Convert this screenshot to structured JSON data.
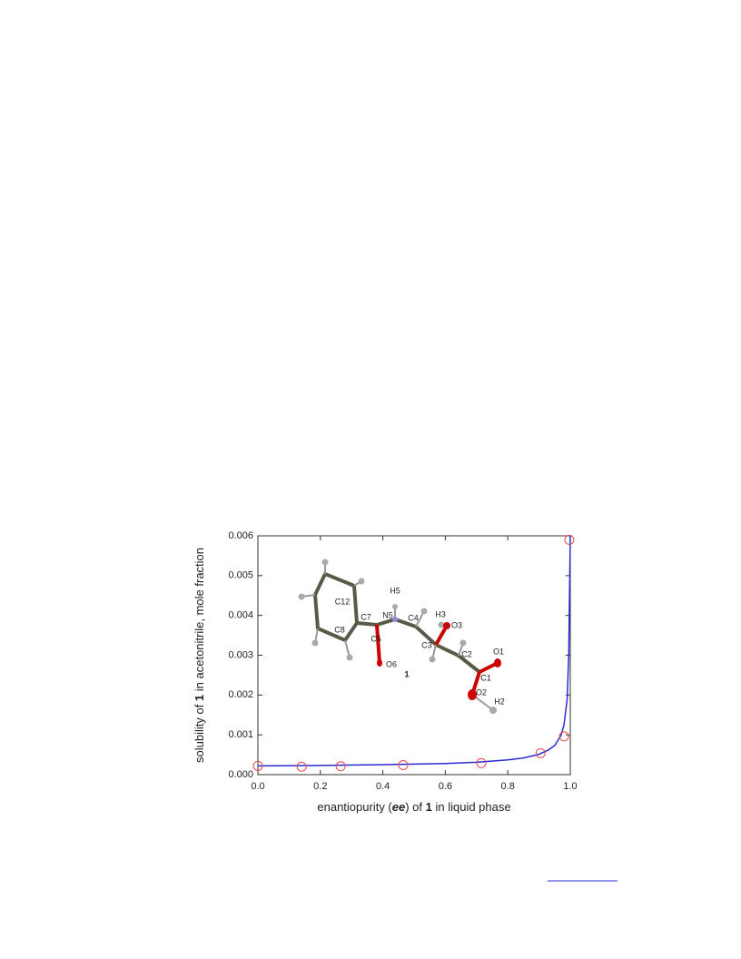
{
  "chart_data": {
    "type": "scatter",
    "ylabel_parts": [
      "solubility of ",
      "1",
      " in acetonitrile, mole fraction"
    ],
    "xlabel_parts": [
      "enantiopurity (",
      "ee",
      ") of ",
      "1",
      " in liquid phase"
    ],
    "xlim": [
      0,
      1
    ],
    "ylim": [
      0,
      0.006
    ],
    "xticks": [
      {
        "value": 0,
        "label": "0.0"
      },
      {
        "value": 0.2,
        "label": "0.2"
      },
      {
        "value": 0.4,
        "label": "0.4"
      },
      {
        "value": 0.6,
        "label": "0.6"
      },
      {
        "value": 0.8,
        "label": "0.8"
      },
      {
        "value": 1,
        "label": "1.0"
      }
    ],
    "yticks": [
      {
        "value": 0,
        "label": "0.000"
      },
      {
        "value": 0.001,
        "label": "0.001"
      },
      {
        "value": 0.002,
        "label": "0.002"
      },
      {
        "value": 0.003,
        "label": "0.003"
      },
      {
        "value": 0.004,
        "label": "0.004"
      },
      {
        "value": 0.005,
        "label": "0.005"
      },
      {
        "value": 0.006,
        "label": "0.006"
      }
    ],
    "points": {
      "color": "#e8474a",
      "x": [
        0.0,
        0.14,
        0.265,
        0.465,
        0.715,
        0.905,
        0.98,
        0.997
      ],
      "y": [
        0.00022,
        0.0002,
        0.00021,
        0.00024,
        0.00029,
        0.00054,
        0.00096,
        0.0059
      ]
    },
    "curve": {
      "color": "#2b2bd6",
      "x": [
        0,
        0.2,
        0.4,
        0.6,
        0.7,
        0.8,
        0.85,
        0.9,
        0.93,
        0.95,
        0.97,
        0.98,
        0.99,
        0.995,
        1.0
      ],
      "y": [
        0.00022,
        0.00023,
        0.00025,
        0.00028,
        0.00031,
        0.00037,
        0.00042,
        0.00051,
        0.00062,
        0.00073,
        0.00098,
        0.00125,
        0.0019,
        0.003,
        0.006
      ]
    },
    "inset_labels": [
      "C12",
      "C7",
      "N5",
      "H5",
      "C4",
      "H3",
      "O3",
      "C8",
      "C6",
      "C3",
      "C2",
      "O1",
      "O6",
      "1",
      "C1",
      "O2",
      "H2"
    ]
  }
}
